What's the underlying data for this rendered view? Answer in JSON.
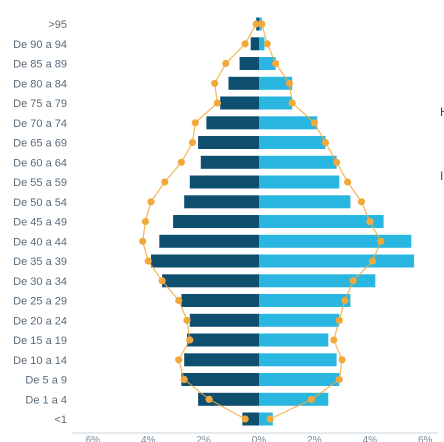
{
  "chart_data": {
    "type": "bar",
    "subtype": "population-pyramid",
    "categories": [
      "<1",
      "De 1 a 4",
      "De 5 a 9",
      "De 10 a 14",
      "De 15 a 19",
      "De 20 a 24",
      "De 25 a 29",
      "De 30 a 34",
      "De 35 a 39",
      "De 40 a 44",
      "De 45 a 49",
      "De 50 a 54",
      "De 55 a 59",
      "De 60 a 64",
      "De 65 a 69",
      "De 70 a 74",
      "De 75 a 79",
      "De 80 a 84",
      "De 85 a 89",
      "De 90 a 94",
      ">95"
    ],
    "series": [
      {
        "color": "#0e4f6f",
        "side": "left",
        "values": [
          0.6,
          2.2,
          2.8,
          2.7,
          2.6,
          2.5,
          2.8,
          3.5,
          3.9,
          3.6,
          3.1,
          2.7,
          2.5,
          2.1,
          2.2,
          1.9,
          1.4,
          1.1,
          0.7,
          0.3,
          0.1
        ]
      },
      {
        "color": "#29b6e0",
        "side": "right",
        "values": [
          0.5,
          2.5,
          2.9,
          2.8,
          2.5,
          2.9,
          3.3,
          4.2,
          5.6,
          5.5,
          4.5,
          3.3,
          2.9,
          2.8,
          2.4,
          2.1,
          1.2,
          1.2,
          0.6,
          0.2,
          0.1
        ]
      },
      {
        "color": "#f2a93b",
        "side": "left",
        "style": "line-markers",
        "values": [
          0.5,
          1.8,
          2.7,
          2.9,
          2.5,
          2.6,
          2.9,
          3.5,
          4.0,
          4.2,
          4.1,
          3.9,
          3.4,
          2.8,
          2.4,
          2.3,
          1.5,
          1.6,
          1.2,
          0.5,
          0.1
        ]
      },
      {
        "color": "#f2a93b",
        "side": "right",
        "style": "line-markers",
        "values": [
          0.4,
          1.9,
          2.9,
          3.0,
          2.7,
          2.9,
          3.1,
          3.4,
          4.1,
          4.4,
          4.0,
          3.7,
          3.2,
          2.8,
          2.4,
          2.0,
          1.2,
          1.1,
          0.6,
          0.3,
          0.1
        ]
      }
    ],
    "x_ticks": [
      "6%",
      "4%",
      "2%",
      "0%",
      "2%",
      "4%",
      "6%"
    ],
    "xlim": [
      -6,
      6
    ],
    "grid": false,
    "legend": "none"
  },
  "side_marks": [
    "H",
    "I"
  ]
}
